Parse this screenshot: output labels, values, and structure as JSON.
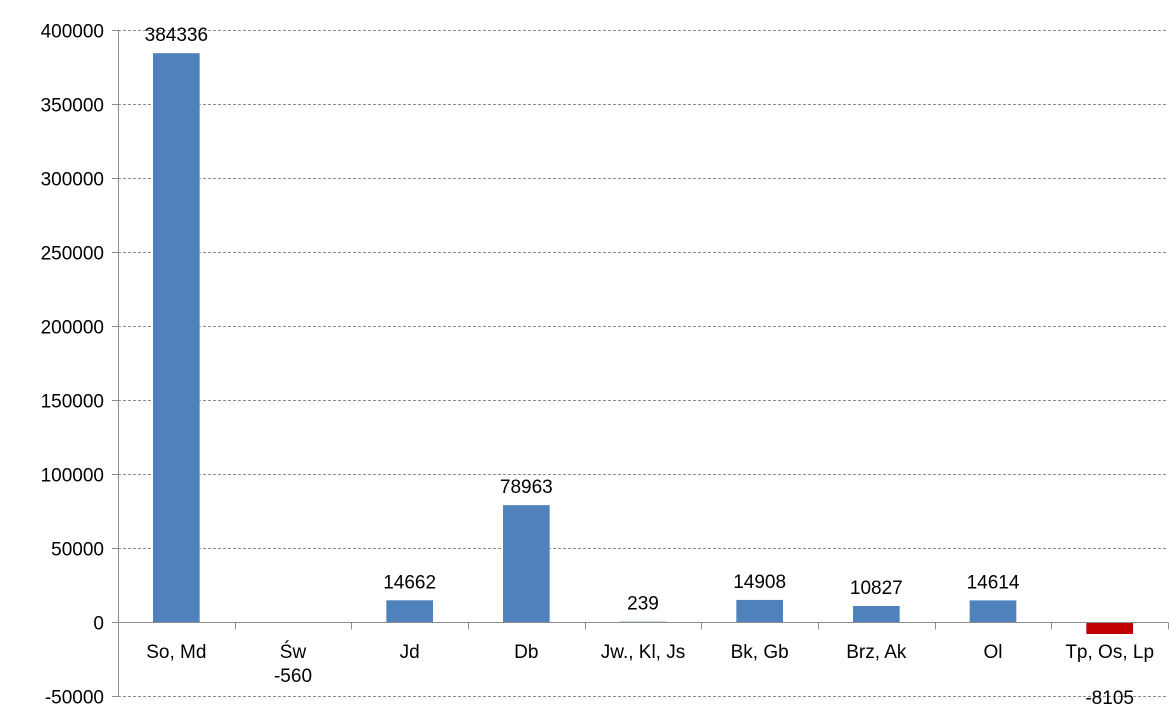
{
  "chart_data": {
    "type": "bar",
    "categories": [
      "So, Md",
      "Św",
      "Jd",
      "Db",
      "Jw., Kl, Js",
      "Bk, Gb",
      "Brz, Ak",
      "Ol",
      "Tp, Os, Lp"
    ],
    "values": [
      384336,
      -560,
      14662,
      78963,
      239,
      14908,
      10827,
      14614,
      -8105
    ],
    "data_labels": [
      "384336",
      "-560",
      "14662",
      "78963",
      "239",
      "14908",
      "10827",
      "14614",
      "-8105"
    ],
    "ylim": [
      -50000,
      400000
    ],
    "yticks": [
      -50000,
      0,
      50000,
      100000,
      150000,
      200000,
      250000,
      300000,
      350000,
      400000
    ],
    "ytick_labels": [
      "-50000",
      "0",
      "50000",
      "100000",
      "150000",
      "200000",
      "250000",
      "300000",
      "350000",
      "400000"
    ],
    "grid": true,
    "legend": "none",
    "title": "",
    "xlabel": "",
    "ylabel": "",
    "colors": {
      "positive": "#4f81bd",
      "negative": "#c00000"
    }
  }
}
